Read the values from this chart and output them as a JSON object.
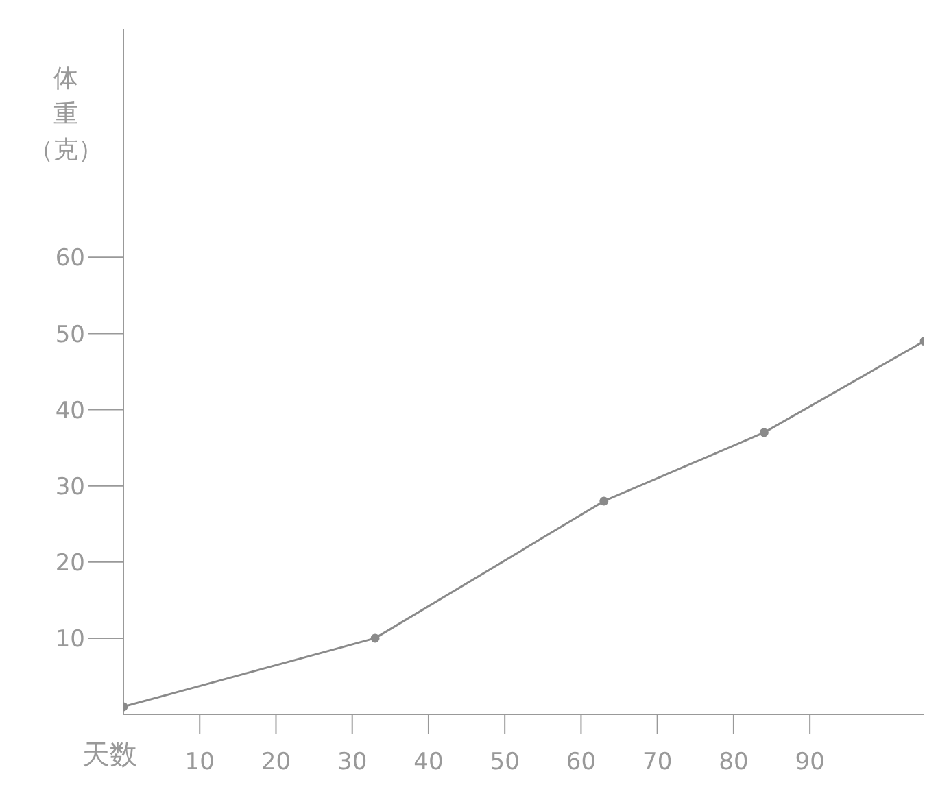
{
  "chart_data": {
    "type": "line",
    "xlabel": "天数",
    "ylabel": "体重（克）",
    "x": [
      0,
      33,
      63,
      84,
      105
    ],
    "series": [
      {
        "color": "#8a8a8a",
        "values": [
          1,
          10,
          28,
          37,
          49
        ]
      }
    ],
    "xlim": [
      0,
      105
    ],
    "ylim": [
      0,
      90
    ],
    "xticks": [
      10,
      20,
      30,
      40,
      50,
      60,
      70,
      80,
      90
    ],
    "yticks": [
      10,
      20,
      30,
      40,
      50,
      60
    ],
    "grid": false,
    "legend": false,
    "marker": "circle",
    "line_style": "solid"
  }
}
